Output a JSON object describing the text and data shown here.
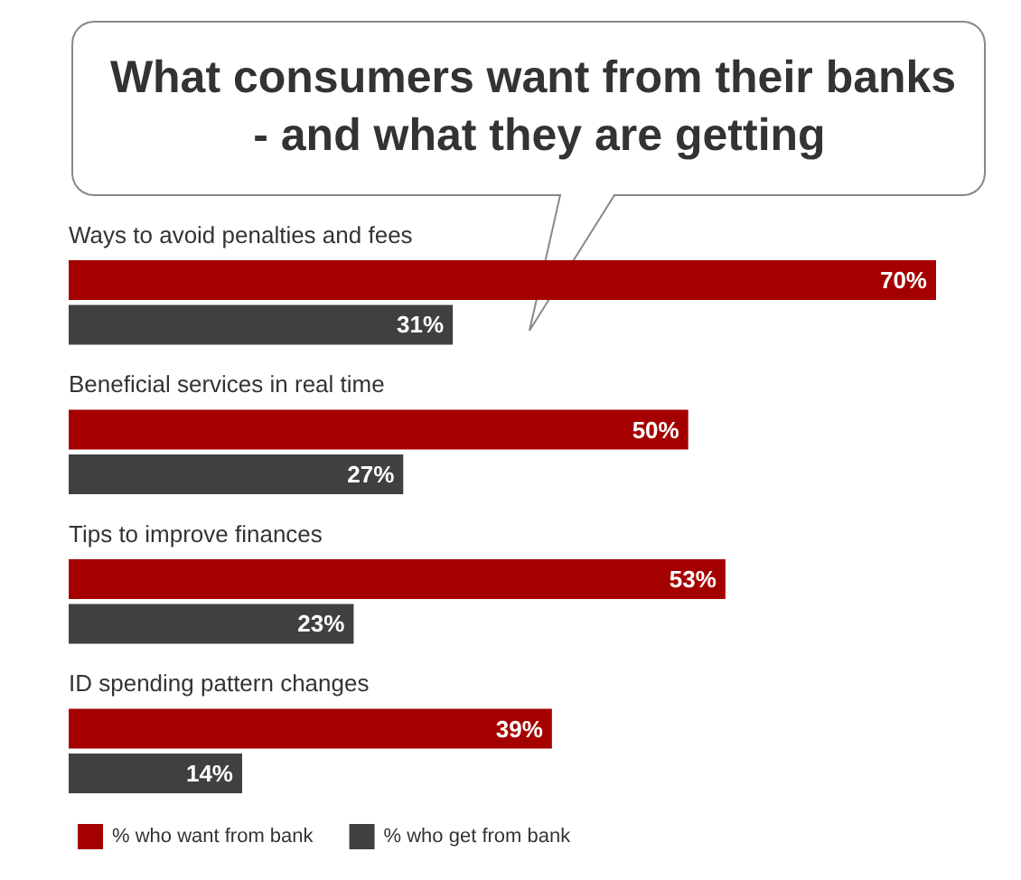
{
  "chart_data": {
    "type": "bar",
    "orientation": "horizontal",
    "title": "What consumers want from their banks - and what they are getting",
    "categories": [
      "Ways to avoid penalties and fees",
      "Beneficial services in real time",
      "Tips to improve finances",
      "ID spending pattern changes"
    ],
    "series": [
      {
        "name": "% who want from bank",
        "color": "#a50000",
        "values": [
          70,
          50,
          53,
          39
        ],
        "value_labels": [
          "70%",
          "50%",
          "53%",
          "39%"
        ]
      },
      {
        "name": "% who get from bank",
        "color": "#404040",
        "values": [
          31,
          27,
          23,
          14
        ],
        "value_labels": [
          "31%",
          "27%",
          "23%",
          "14%"
        ]
      }
    ],
    "legend": "bottom left",
    "tick_labels": "y"
  }
}
